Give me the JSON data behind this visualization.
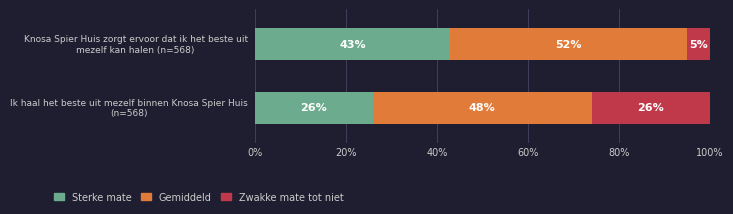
{
  "categories": [
    "Ik haal het beste uit mezelf binnen Knosa Spier Huis\n(n=568)",
    "Knosa Spier Huis zorgt ervoor dat ik het beste uit\nmezelf kan halen (n=568)"
  ],
  "series": [
    {
      "label": "Sterke mate",
      "values": [
        43,
        26
      ],
      "color": "#6dab8e"
    },
    {
      "label": "Gemiddeld",
      "values": [
        52,
        48
      ],
      "color": "#e07b39"
    },
    {
      "label": "Zwakke mate tot niet",
      "values": [
        5,
        26
      ],
      "color": "#c0394b"
    }
  ],
  "bar_labels": [
    [
      "43%",
      "52%",
      "5%"
    ],
    [
      "26%",
      "48%",
      "26%"
    ]
  ],
  "xlim": [
    0,
    100
  ],
  "xticks": [
    0,
    20,
    40,
    60,
    80,
    100
  ],
  "xticklabels": [
    "0%",
    "20%",
    "40%",
    "60%",
    "80%",
    "100%"
  ],
  "background_color": "#1e1e30",
  "plot_bg_color": "#1e1e30",
  "bar_height": 0.5,
  "label_fontsize": 8,
  "tick_fontsize": 7,
  "legend_fontsize": 7,
  "category_fontsize": 6.5,
  "text_color": "#cccccc",
  "grid_color": "#444466",
  "legend_labels": [
    "Sterke mate",
    "Gemiddeld",
    "Zwakke mate tot niet"
  ],
  "legend_colors": [
    "#6dab8e",
    "#e07b39",
    "#c0394b"
  ]
}
